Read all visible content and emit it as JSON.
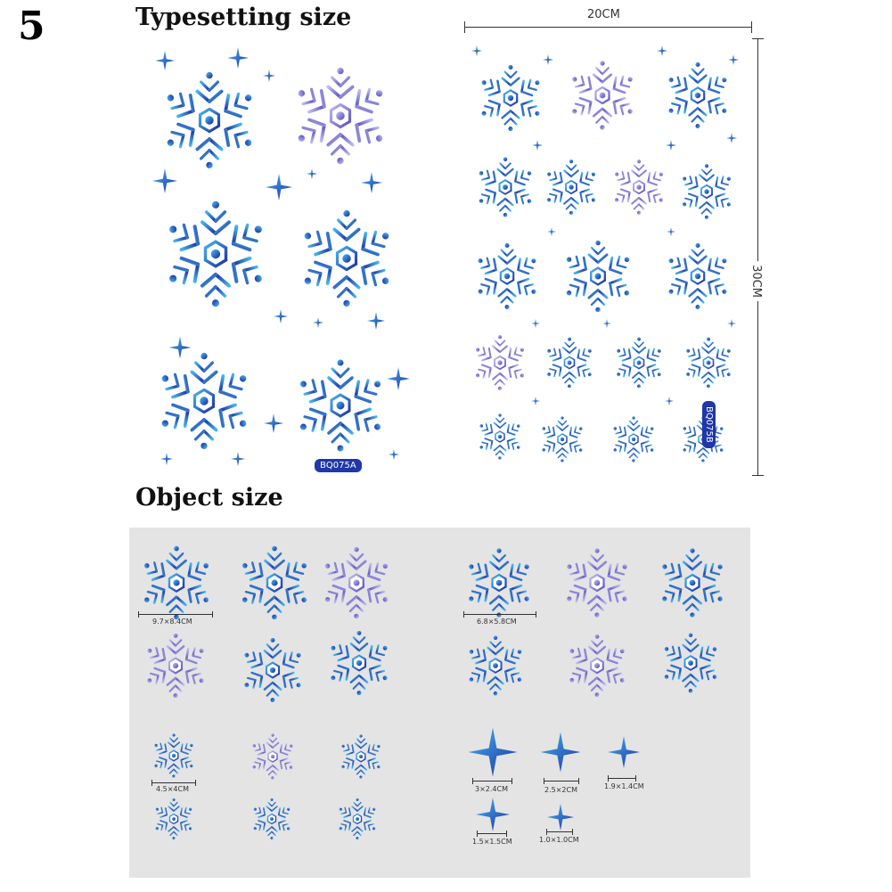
{
  "page_number": "5",
  "headings": {
    "typesetting": "Typesetting size",
    "object": "Object size"
  },
  "sheet_a": {
    "code": "BQ075A"
  },
  "sheet_b": {
    "code": "BQ075B",
    "width_label": "20CM",
    "height_label": "30CM"
  },
  "object_sizes": {
    "large_a": "9.7×8.4CM",
    "large_b": "6.8×5.8CM",
    "small_a": "4.5×4CM",
    "star_1": "3×2.4CM",
    "star_2": "2.5×2CM",
    "star_3": "1.9×1.4CM",
    "star_4": "1.5×1.5CM",
    "star_5": "1.0×1.0CM"
  },
  "icons": {
    "snowflake": "snowflake-icon",
    "sparkle": "sparkle-star-icon"
  },
  "colors": {
    "deep_blue": "#1c2fa0",
    "mid_blue": "#2f6fe0",
    "sky_blue": "#46b4f0",
    "lavender": "#8f8fd8",
    "panel_grey": "#e4e4e4"
  }
}
